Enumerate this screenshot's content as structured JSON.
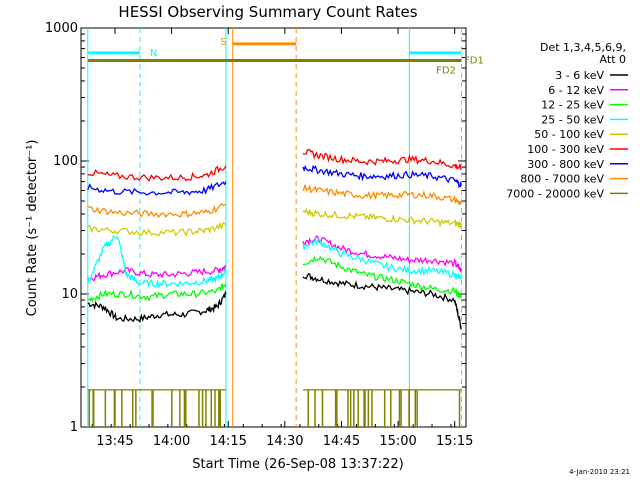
{
  "chart_data": {
    "type": "line",
    "title": "HESSI Observing Summary Count Rates",
    "xlabel": "Start Time (26-Sep-08 13:37:22)",
    "ylabel": "Count Rate (s⁻¹ detector⁻¹)",
    "y_scale": "log",
    "ylim": [
      1,
      1000
    ],
    "xlim_minutes": [
      13.6,
      15.3
    ],
    "x_tick_labels": [
      "13:45",
      "14:00",
      "14:15",
      "14:30",
      "14:45",
      "15:00",
      "15:15"
    ],
    "x_ticks_hours": [
      13.75,
      14.0,
      14.25,
      14.5,
      14.75,
      15.0,
      15.25
    ],
    "y_tick_labels": [
      "1",
      "10",
      "100",
      "1000"
    ],
    "y_ticks": [
      1,
      10,
      100,
      1000
    ],
    "legend_header": [
      "Det 1,3,4,5,6,9,",
      "Att 0"
    ],
    "legend_placement": "right",
    "timestamp": "4-Jan-2010 23:21",
    "markers": [
      {
        "label": "N",
        "color": "#00ffff",
        "bars": [
          [
            13.63,
            13.86
          ],
          [
            15.05,
            15.28
          ]
        ],
        "level": 650
      },
      {
        "label": "S",
        "color": "#ff8c00",
        "bars": [
          [
            14.27,
            14.55
          ]
        ],
        "level": 760
      },
      {
        "label": "FD1",
        "color": "#808000",
        "bars": [
          [
            13.63,
            15.28
          ]
        ],
        "level": 570
      },
      {
        "label": "FD2",
        "color": "#808000",
        "bars": [],
        "level": 560
      }
    ],
    "vertical_lines": [
      {
        "t": 13.63,
        "color": "#00ffff",
        "style": "solid"
      },
      {
        "t": 13.86,
        "color": "#00ffff",
        "style": "dashed"
      },
      {
        "t": 14.24,
        "color": "#00ffff",
        "style": "solid"
      },
      {
        "t": 14.27,
        "color": "#ff8c00",
        "style": "solid"
      },
      {
        "t": 14.55,
        "color": "#ff8c00",
        "style": "dashed"
      },
      {
        "t": 15.05,
        "color": "#00ffff",
        "style": "solid"
      },
      {
        "t": 15.28,
        "color": "#00ffff",
        "style": "dashed"
      }
    ],
    "series": [
      {
        "name": "3 - 6 keV",
        "color": "#000000",
        "segments": [
          {
            "t": [
              13.63,
              13.7,
              13.76,
              13.86,
              13.95,
              14.05,
              14.15,
              14.2,
              14.24
            ],
            "y": [
              8.5,
              8,
              6.5,
              6.5,
              7,
              7,
              7.5,
              8,
              10
            ]
          },
          {
            "t": [
              14.58,
              14.65,
              14.75,
              14.85,
              14.95,
              15.05,
              15.15,
              15.25,
              15.28
            ],
            "y": [
              14,
              13,
              12,
              11.5,
              11,
              10.5,
              10,
              9,
              5.5
            ]
          }
        ]
      },
      {
        "name": "6 - 12 keV",
        "color": "#ff00ff",
        "segments": [
          {
            "t": [
              13.63,
              13.7,
              13.8,
              13.9,
              14.0,
              14.1,
              14.2,
              14.24
            ],
            "y": [
              13,
              14,
              15,
              14,
              14,
              14.5,
              15,
              16
            ]
          },
          {
            "t": [
              14.58,
              14.65,
              14.75,
              14.85,
              14.95,
              15.05,
              15.15,
              15.25,
              15.28
            ],
            "y": [
              25,
              26,
              22,
              20,
              19,
              18,
              18,
              17,
              15
            ]
          }
        ]
      },
      {
        "name": "12 - 25 keV",
        "color": "#00ff00",
        "segments": [
          {
            "t": [
              13.63,
              13.7,
              13.8,
              13.9,
              14.0,
              14.1,
              14.2,
              14.24
            ],
            "y": [
              9,
              10,
              10,
              9.5,
              10,
              10,
              10.5,
              12
            ]
          },
          {
            "t": [
              14.58,
              14.65,
              14.75,
              14.85,
              14.95,
              15.05,
              15.15,
              15.25,
              15.28
            ],
            "y": [
              17,
              19,
              16,
              14,
              13,
              12,
              11,
              10.5,
              9.5
            ]
          }
        ]
      },
      {
        "name": "25 - 50 keV",
        "color": "#00ffff",
        "segments": [
          {
            "t": [
              13.63,
              13.7,
              13.76,
              13.8,
              13.86,
              13.95,
              14.05,
              14.15,
              14.2,
              14.24
            ],
            "y": [
              12,
              22,
              28,
              14,
              12,
              12,
              12,
              12.5,
              13,
              15
            ]
          },
          {
            "t": [
              14.58,
              14.65,
              14.75,
              14.85,
              14.95,
              15.05,
              15.15,
              15.25,
              15.28
            ],
            "y": [
              23,
              25,
              20,
              18,
              16,
              15,
              15,
              14,
              13
            ]
          }
        ]
      },
      {
        "name": "50 - 100 keV",
        "color": "#cccc00",
        "segments": [
          {
            "t": [
              13.63,
              13.75,
              13.9,
              14.05,
              14.15,
              14.24
            ],
            "y": [
              31,
              30,
              29,
              29,
              30,
              33
            ]
          },
          {
            "t": [
              14.58,
              14.65,
              14.75,
              14.85,
              14.95,
              15.05,
              15.15,
              15.25,
              15.28
            ],
            "y": [
              42,
              40,
              39,
              38,
              37,
              36,
              35,
              34,
              33
            ]
          }
        ]
      },
      {
        "name": "100 - 300 keV",
        "color": "#ff0000",
        "segments": [
          {
            "t": [
              13.63,
              13.75,
              13.9,
              14.05,
              14.15,
              14.24
            ],
            "y": [
              82,
              77,
              75,
              75,
              78,
              92
            ]
          },
          {
            "t": [
              14.58,
              14.65,
              14.75,
              14.85,
              14.95,
              15.05,
              15.15,
              15.25,
              15.28
            ],
            "y": [
              118,
              110,
              103,
              99,
              100,
              103,
              100,
              92,
              88
            ]
          }
        ]
      },
      {
        "name": "300 - 800 keV",
        "color": "#0000ff",
        "segments": [
          {
            "t": [
              13.63,
              13.75,
              13.9,
              14.05,
              14.15,
              14.24
            ],
            "y": [
              63,
              59,
              58,
              58,
              60,
              70
            ]
          },
          {
            "t": [
              14.58,
              14.65,
              14.75,
              14.85,
              14.95,
              15.05,
              15.15,
              15.25,
              15.28
            ],
            "y": [
              90,
              85,
              80,
              77,
              77,
              79,
              77,
              71,
              66
            ]
          }
        ]
      },
      {
        "name": "800 - 7000 keV",
        "color": "#ff8c00",
        "segments": [
          {
            "t": [
              13.63,
              13.75,
              13.9,
              14.05,
              14.15,
              14.24
            ],
            "y": [
              44,
              41,
              40,
              40,
              41,
              47
            ]
          },
          {
            "t": [
              14.58,
              14.65,
              14.75,
              14.85,
              14.95,
              15.05,
              15.15,
              15.25,
              15.28
            ],
            "y": [
              63,
              60,
              57,
              55,
              55,
              56,
              55,
              51,
              48
            ]
          }
        ]
      },
      {
        "name": "7000 - 20000 keV",
        "color": "#808000",
        "segments": [
          {
            "t": [
              13.63,
              13.75,
              13.9,
              14.05,
              14.15,
              14.24
            ],
            "y": [
              1.9,
              1.9,
              1.9,
              1.9,
              1.9,
              1.9
            ]
          },
          {
            "t": [
              14.58,
              14.75,
              14.95,
              15.05,
              15.15,
              15.28
            ],
            "y": [
              1.9,
              1.9,
              1.9,
              1.9,
              1.9,
              1.9
            ]
          }
        ]
      }
    ]
  }
}
